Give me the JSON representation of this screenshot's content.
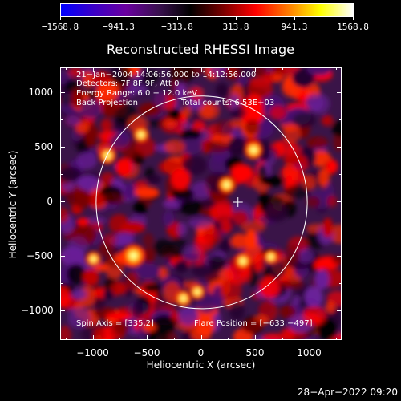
{
  "chart_data": {
    "type": "heatmap",
    "title": "Reconstructed RHESSI Image",
    "xlabel": "Heliocentric X (arcsec)",
    "ylabel": "Heliocentric Y (arcsec)",
    "xlim": [
      -1300,
      1300
    ],
    "ylim": [
      -1270,
      1230
    ],
    "xticks": [
      -1000,
      -500,
      0,
      500,
      1000
    ],
    "yticks": [
      1000,
      500,
      0,
      -500,
      -1000
    ],
    "xtick_labels": [
      "−1000",
      "−500",
      "0",
      "500",
      "1000"
    ],
    "ytick_labels": [
      "1000",
      "500",
      "0",
      "−500",
      "−1000"
    ],
    "colorbar": {
      "range": [
        -1568.8,
        1568.8
      ],
      "tick_values": [
        -1568.8,
        -941.3,
        -313.8,
        313.8,
        941.3,
        1568.8
      ],
      "tick_labels": [
        "−1568.8",
        "−941.3",
        "−313.8",
        "313.8",
        "941.3",
        "1568.8"
      ],
      "colormap": [
        "#0000ff",
        "#3a00c8",
        "#6a00a0",
        "#3a1050",
        "#000000",
        "#7a0000",
        "#ff0000",
        "#ff7a00",
        "#ffff00",
        "#ffffff"
      ]
    },
    "annotations": {
      "time": "21−Jan−2004 14:06:56.000 to 14:12:56.000",
      "detectors": "Detectors: 7F 8F 9F, Att 0",
      "energy": "Energy Range: 6.0 − 12.0 keV",
      "method": "Back Projection",
      "counts": "Total counts: 6.53E+03",
      "spin_axis": "Spin Axis = [335,2]",
      "flare_position": "Flare Position = [−633,−497]"
    },
    "solar_disk": {
      "center": [
        0,
        0
      ],
      "radius_arcsec": 975
    },
    "plus_marker": [
      335,
      2
    ],
    "bright_sources": [
      {
        "x": -630,
        "y": -490,
        "value": 1568.8
      },
      {
        "x": 480,
        "y": 480,
        "value": 1100
      },
      {
        "x": 230,
        "y": 160,
        "value": 1000
      },
      {
        "x": -870,
        "y": 430,
        "value": 900
      },
      {
        "x": 380,
        "y": -540,
        "value": 850
      },
      {
        "x": -170,
        "y": -880,
        "value": 800
      },
      {
        "x": -560,
        "y": 620,
        "value": 750
      },
      {
        "x": -40,
        "y": -820,
        "value": 700
      },
      {
        "x": 640,
        "y": -500,
        "value": 650
      },
      {
        "x": -1000,
        "y": -520,
        "value": 650
      }
    ]
  },
  "footer": {
    "timestamp": "28−Apr−2022 09:20"
  }
}
